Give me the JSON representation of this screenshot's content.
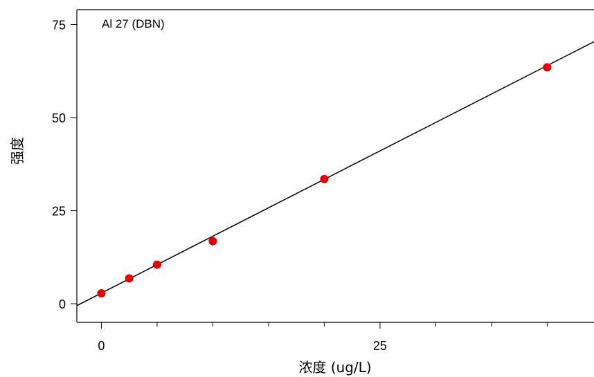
{
  "chart_data": {
    "type": "scatter",
    "title": "",
    "annotation": "Al 27 (DBN)",
    "xlabel": "浓度 (ug/L)",
    "ylabel": "强度",
    "xlim": [
      -2.2,
      44.2
    ],
    "ylim": [
      -5,
      79
    ],
    "x_ticks_labeled": [
      0,
      25
    ],
    "x_ticks_minor": [
      5,
      10,
      15,
      20,
      30,
      35,
      40
    ],
    "y_ticks_labeled": [
      0,
      25,
      50,
      75
    ],
    "grid": false,
    "series": [
      {
        "kind": "points",
        "color": "#e60000",
        "x": [
          0,
          2.5,
          5,
          10,
          20,
          40
        ],
        "y": [
          2.8,
          6.8,
          10.5,
          16.8,
          33.5,
          63.5
        ]
      },
      {
        "kind": "fit-line",
        "color": "#000000",
        "x": [
          -2.2,
          44.2
        ],
        "y": [
          -0.5,
          70.4
        ]
      }
    ]
  }
}
